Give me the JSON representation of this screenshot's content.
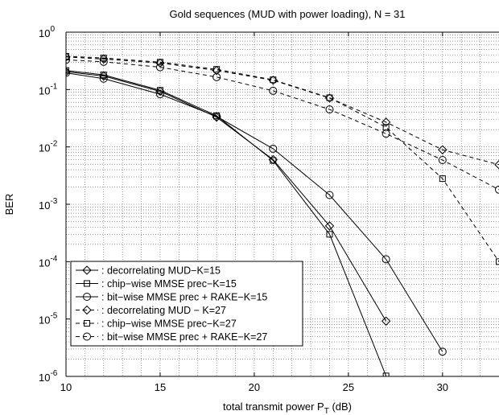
{
  "chart_data": {
    "type": "line",
    "title": "Gold sequences (MUD with power loading), N = 31",
    "xlabel": "total transmit power  P",
    "xlabel_sub": "T",
    "xlabel_unit": " (dB)",
    "ylabel": "BER",
    "xlim": [
      10,
      33
    ],
    "ylim": [
      1e-06,
      1
    ],
    "yscale": "log",
    "grid": "on (dotted, major and minor)",
    "legend_position": "bottom-left",
    "x_ticks": [
      10,
      15,
      20,
      25,
      30
    ],
    "y_ticks": [
      {
        "base": "10",
        "exp": "0"
      },
      {
        "base": "10",
        "exp": "-1"
      },
      {
        "base": "10",
        "exp": "-2"
      },
      {
        "base": "10",
        "exp": "-3"
      },
      {
        "base": "10",
        "exp": "-4"
      },
      {
        "base": "10",
        "exp": "-5"
      },
      {
        "base": "10",
        "exp": "-6"
      }
    ],
    "series": [
      {
        "name": ": decorrelating MUD−K=15",
        "marker": "diamond",
        "dash": "solid",
        "x": [
          10,
          12,
          15,
          18,
          21,
          24,
          27
        ],
        "y": [
          0.205,
          0.172,
          0.093,
          0.033,
          0.006,
          0.00042,
          9.2e-06
        ]
      },
      {
        "name": ": chip−wise MMSE prec−K=15",
        "marker": "square",
        "dash": "solid",
        "x": [
          10,
          12,
          15,
          18,
          21,
          24,
          27
        ],
        "y": [
          0.215,
          0.18,
          0.097,
          0.035,
          0.0058,
          0.0003,
          1.02e-06
        ]
      },
      {
        "name": ": bit−wise MMSE prec + RAKE−K=15",
        "marker": "circle",
        "dash": "solid",
        "x": [
          10,
          12,
          15,
          18,
          21,
          24,
          27,
          30
        ],
        "y": [
          0.195,
          0.155,
          0.083,
          0.034,
          0.0093,
          0.00145,
          0.00011,
          2.7e-06
        ]
      },
      {
        "name": ": decorrelating MUD − K=27",
        "marker": "diamond",
        "dash": "dashed",
        "x": [
          10,
          12,
          15,
          18,
          21,
          24,
          27,
          30,
          33
        ],
        "y": [
          0.37,
          0.34,
          0.29,
          0.215,
          0.145,
          0.071,
          0.027,
          0.0089,
          0.0049
        ]
      },
      {
        "name": ": chip−wise MMSE prec−K=27",
        "marker": "square",
        "dash": "dashed",
        "x": [
          10,
          12,
          15,
          18,
          21,
          24,
          27,
          30,
          33
        ],
        "y": [
          0.38,
          0.355,
          0.3,
          0.225,
          0.148,
          0.072,
          0.022,
          0.0028,
          0.0001
        ]
      },
      {
        "name": ": bit−wise MMSE prec + RAKE−K=27",
        "marker": "circle",
        "dash": "dashed",
        "x": [
          10,
          12,
          15,
          18,
          21,
          24,
          27,
          30,
          33
        ],
        "y": [
          0.33,
          0.305,
          0.245,
          0.165,
          0.095,
          0.045,
          0.017,
          0.0059,
          0.0018
        ]
      }
    ]
  }
}
